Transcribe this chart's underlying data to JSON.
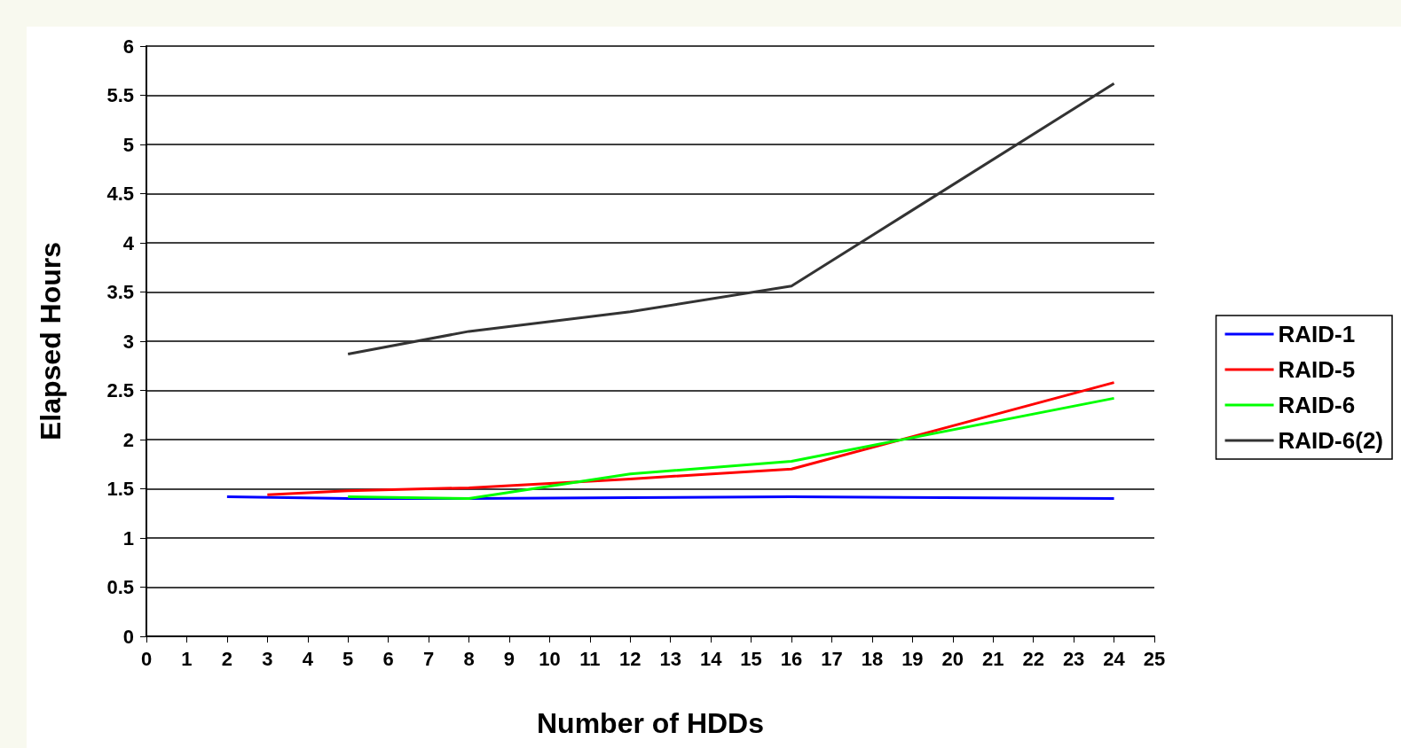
{
  "chart_data": {
    "type": "line",
    "xlabel": "Number of HDDs",
    "ylabel": "Elapsed Hours",
    "xlim": [
      0,
      25
    ],
    "xticks": [
      0,
      1,
      2,
      3,
      4,
      5,
      6,
      7,
      8,
      9,
      10,
      11,
      12,
      13,
      14,
      15,
      16,
      17,
      18,
      19,
      20,
      21,
      22,
      23,
      24,
      25
    ],
    "ylim": [
      0,
      6
    ],
    "yticks": [
      0,
      0.5,
      1,
      1.5,
      2,
      2.5,
      3,
      3.5,
      4,
      4.5,
      5,
      5.5,
      6
    ],
    "grid": "y",
    "legend": "right",
    "marker": "none",
    "line_style": "solid",
    "series": [
      {
        "name": "RAID-1",
        "color": "#0000ff",
        "x": [
          2,
          5,
          8,
          12,
          16,
          24
        ],
        "values": [
          1.42,
          1.4,
          1.4,
          1.41,
          1.42,
          1.4
        ]
      },
      {
        "name": "RAID-5",
        "color": "#ff0000",
        "x": [
          3,
          5,
          8,
          12,
          16,
          24
        ],
        "values": [
          1.44,
          1.48,
          1.51,
          1.6,
          1.7,
          2.58
        ]
      },
      {
        "name": "RAID-6",
        "color": "#00ff00",
        "x": [
          5,
          8,
          12,
          16,
          24
        ],
        "values": [
          1.42,
          1.4,
          1.65,
          1.78,
          2.42
        ]
      },
      {
        "name": "RAID-6(2)",
        "color": "#333333",
        "x": [
          5,
          8,
          12,
          16,
          24
        ],
        "values": [
          2.87,
          3.1,
          3.3,
          3.56,
          5.62
        ]
      }
    ]
  }
}
